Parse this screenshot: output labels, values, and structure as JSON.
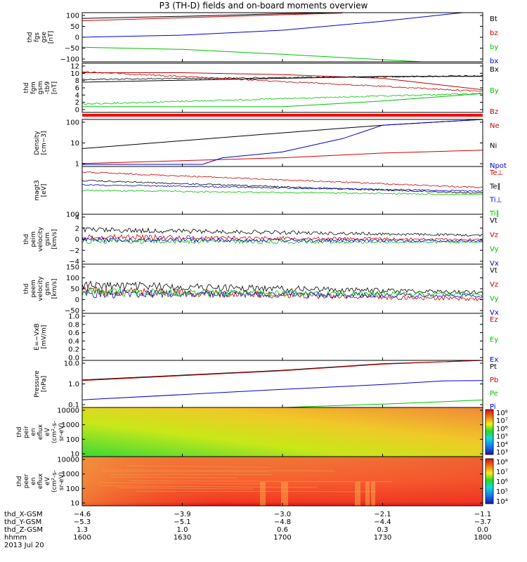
{
  "title": "P3 (TH-D) fields and on-board moments overview",
  "chart_data": [
    {
      "panel": "fgs_gse",
      "type": "line",
      "ylabel": [
        "thd",
        "fgs",
        "gse",
        "[nT]"
      ],
      "yticks": [
        "100",
        "50",
        "0",
        "−50",
        "−100"
      ],
      "ylim": [
        -120,
        110
      ],
      "series": [
        {
          "name": "Bt",
          "color": "#000000",
          "x": [
            16.0,
            16.5,
            17.0,
            17.3
          ],
          "y": [
            83,
            93,
            105,
            112
          ]
        },
        {
          "name": "bz",
          "color": "#d00000",
          "x": [
            16.0,
            16.5,
            17.0,
            17.3
          ],
          "y": [
            72,
            86,
            100,
            108
          ]
        },
        {
          "name": "by",
          "color": "#00c000",
          "x": [
            16.0,
            16.5,
            17.0,
            17.5,
            17.7
          ],
          "y": [
            -52,
            -62,
            -85,
            -110,
            -120
          ]
        },
        {
          "name": "bx",
          "color": "#0000d0",
          "x": [
            16.0,
            16.5,
            17.0,
            17.5,
            17.9
          ],
          "y": [
            -5,
            5,
            28,
            70,
            110
          ]
        }
      ],
      "grid": false
    },
    {
      "panel": "fgm_gsm",
      "type": "line",
      "ylabel": [
        "thd",
        "fgm",
        "gsm",
        "-tb9",
        "[nT]"
      ],
      "yticks": [
        "12",
        "10",
        "8",
        "6",
        "4",
        "2",
        "0"
      ],
      "ylim": [
        -1,
        12
      ],
      "series": [
        {
          "name": "Bx",
          "color": "#000000",
          "x": [
            16.0,
            16.5,
            17.0,
            17.5,
            18.0
          ],
          "y": [
            7,
            7.5,
            8,
            8.5,
            8.5
          ]
        },
        {
          "name": "By",
          "color": "#00c000",
          "x": [
            16.0,
            16.5,
            17.0,
            17.5,
            18.0
          ],
          "y": [
            0.5,
            0.5,
            0.5,
            2,
            4
          ]
        },
        {
          "name": "Bz",
          "color": "#c00000",
          "x": [
            16.0,
            16.5,
            17.0,
            17.5,
            18.0
          ],
          "y": [
            9.5,
            9.5,
            9,
            8,
            5
          ]
        }
      ],
      "grid": false
    },
    {
      "panel": "density",
      "type": "line",
      "log": true,
      "ylabel": [
        "Density",
        "[cm−3]"
      ],
      "yticks": [
        "100",
        "10",
        "1"
      ],
      "ylim": [
        0.7,
        200
      ],
      "series": [
        {
          "name": "Ne",
          "color": "#d00000",
          "x": [
            16.0,
            17.0,
            17.5,
            18.0
          ],
          "y": [
            1,
            2,
            3.5,
            5
          ]
        },
        {
          "name": "Ni",
          "color": "#000000",
          "x": [
            16.0,
            17.0,
            17.5,
            18.0
          ],
          "y": [
            6,
            40,
            100,
            200
          ]
        },
        {
          "name": "Npot",
          "color": "#0000d0",
          "x": [
            16.0,
            16.6,
            16.7,
            17.0,
            17.3,
            17.5,
            18.0
          ],
          "y": [
            0.9,
            0.9,
            2,
            4,
            20,
            100,
            200
          ]
        }
      ],
      "grid": false
    },
    {
      "panel": "temperature",
      "type": "line",
      "log": true,
      "ylabel": [
        "magt3",
        "[eV]"
      ],
      "yticks": [
        "100"
      ],
      "ylim": [
        100,
        10000
      ],
      "series": [
        {
          "name": "Te⊥",
          "color": "#d00000"
        },
        {
          "name": "Te∥",
          "color": "#000000"
        },
        {
          "name": "Ti⊥",
          "color": "#0000d0"
        },
        {
          "name": "Ti∥",
          "color": "#00c000"
        }
      ],
      "grid": false
    },
    {
      "panel": "peim_velocity",
      "type": "line",
      "ylabel": [
        "thd",
        "peim",
        "velocity",
        "gsm",
        "[km/s]"
      ],
      "yticks": [
        "4",
        "2",
        "0",
        "−2",
        "−4"
      ],
      "ylim": [
        -5,
        4
      ],
      "series": [
        {
          "name": "Vt",
          "color": "#000000"
        },
        {
          "name": "Vz",
          "color": "#d00000"
        },
        {
          "name": "Vy",
          "color": "#00c000"
        },
        {
          "name": "Vx",
          "color": "#0000d0"
        }
      ],
      "grid": false
    },
    {
      "panel": "peem_velocity",
      "type": "line",
      "ylabel": [
        "thd",
        "peem",
        "velocity",
        "gsm",
        "[km/s]"
      ],
      "yticks": [
        "150",
        "100",
        "50",
        "0",
        "−50"
      ],
      "ylim": [
        -60,
        150
      ],
      "series": [
        {
          "name": "Vt",
          "color": "#000000"
        },
        {
          "name": "Vz",
          "color": "#d00000"
        },
        {
          "name": "Vy",
          "color": "#00c000"
        },
        {
          "name": "Vx",
          "color": "#0000d0"
        }
      ],
      "grid": false
    },
    {
      "panel": "efield",
      "type": "line",
      "ylabel": [
        "E=−VxB",
        "[mV/m]"
      ],
      "yticks": [
        "1.0",
        "0.8",
        "0.6",
        "0.4",
        "0.2",
        "0.0"
      ],
      "ylim": [
        0,
        1
      ],
      "series": [
        {
          "name": "Ez",
          "color": "#d00000"
        },
        {
          "name": "Ey",
          "color": "#00c000"
        },
        {
          "name": "Ex",
          "color": "#0000d0"
        }
      ],
      "grid": false
    },
    {
      "panel": "pressure",
      "type": "line",
      "log": true,
      "ylabel": [
        "Pressure",
        "[nPa]"
      ],
      "yticks": [
        "10.0",
        "1.0",
        "0.1"
      ],
      "ylim": [
        0.1,
        30
      ],
      "series": [
        {
          "name": "Pt",
          "color": "#000000",
          "x": [
            16.0,
            17.0,
            17.5,
            18.0
          ],
          "y": [
            2.8,
            9,
            20,
            40
          ]
        },
        {
          "name": "Pb",
          "color": "#d00000",
          "x": [
            16.0,
            17.0,
            17.5,
            18.0
          ],
          "y": [
            2.6,
            8.5,
            19,
            38
          ]
        },
        {
          "name": "Pe",
          "color": "#00c000",
          "x": [
            16.0,
            17.0,
            17.5,
            17.8,
            18.0
          ],
          "y": [
            0.1,
            0.1,
            0.15,
            0.2,
            0.25
          ]
        },
        {
          "name": "Pi",
          "color": "#0000d0",
          "x": [
            16.0,
            17.0,
            17.5,
            17.8,
            18.0
          ],
          "y": [
            0.25,
            0.9,
            1.6,
            2.5,
            2.6
          ]
        }
      ],
      "grid": false
    },
    {
      "panel": "peir_spectrogram",
      "type": "heatmap",
      "ylabel": [
        "thd",
        "peir",
        "en",
        "eflux",
        "eV",
        "(cm²-s-",
        "sr-eV)"
      ],
      "yticks": [
        "10000",
        "1000",
        "100",
        "10"
      ],
      "colorbar_labels": [
        "10⁸",
        "10⁷",
        "10⁶",
        "10⁵",
        "10⁴",
        "10³"
      ]
    },
    {
      "panel": "peer_spectrogram",
      "type": "heatmap",
      "ylabel": [
        "thd",
        "peer",
        "en",
        "eflux",
        "eV",
        "(cm²-s-",
        "sr-eV)"
      ],
      "yticks": [
        "10000",
        "1000",
        "100",
        "10"
      ],
      "colorbar_labels": [
        "10⁸",
        "10⁷",
        "10⁶",
        "10⁵",
        "10⁴"
      ]
    }
  ],
  "footer": {
    "row_labels": [
      "thd_X-GSM",
      "thd_Y-GSM",
      "thd_Z-GSM",
      "hhmm",
      "2013 Jul 20"
    ],
    "columns": [
      {
        "x": "−4.6",
        "y": "−5.3",
        "z": "1.3",
        "t": "1600"
      },
      {
        "x": "−3.9",
        "y": "−5.1",
        "z": "1.0",
        "t": "1630"
      },
      {
        "x": "−3.0",
        "y": "−4.8",
        "z": "0.6",
        "t": "1700"
      },
      {
        "x": "−2.1",
        "y": "−4.4",
        "z": "0.3",
        "t": "1730"
      },
      {
        "x": "−1.1",
        "y": "−3.7",
        "z": "0.0",
        "t": "1800"
      }
    ]
  }
}
